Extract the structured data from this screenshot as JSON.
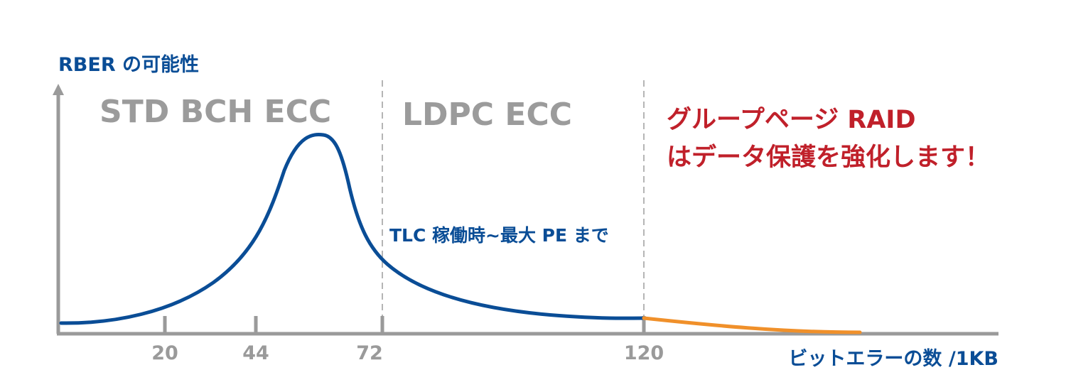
{
  "colors": {
    "axis": "#9a9a9a",
    "curve_main": "#0a4d96",
    "curve_tail": "#f0902a",
    "region_label": "#9b9b9b",
    "axis_title": "#0a4d96",
    "raid_text": "#c0202a",
    "divider": "#b5b5b5"
  },
  "y_axis_title": "RBER の可能性",
  "x_axis_title": "ビットエラーの数 /1KB",
  "regions": [
    {
      "label": "STD BCH ECC"
    },
    {
      "label": "LDPC ECC"
    }
  ],
  "raid_text": {
    "line1": "グループページ RAID",
    "line2": "はデータ保護を強化します！"
  },
  "annotation": "TLC 稼働時~最大 PE まで",
  "chart_data": {
    "type": "line",
    "ticks": [
      "20",
      "44",
      "72",
      "120"
    ],
    "dividers_at": [
      72,
      120
    ],
    "series": [
      {
        "segment": "main",
        "color": "#0a4d96"
      },
      {
        "segment": "tail",
        "color": "#f0902a"
      }
    ]
  }
}
